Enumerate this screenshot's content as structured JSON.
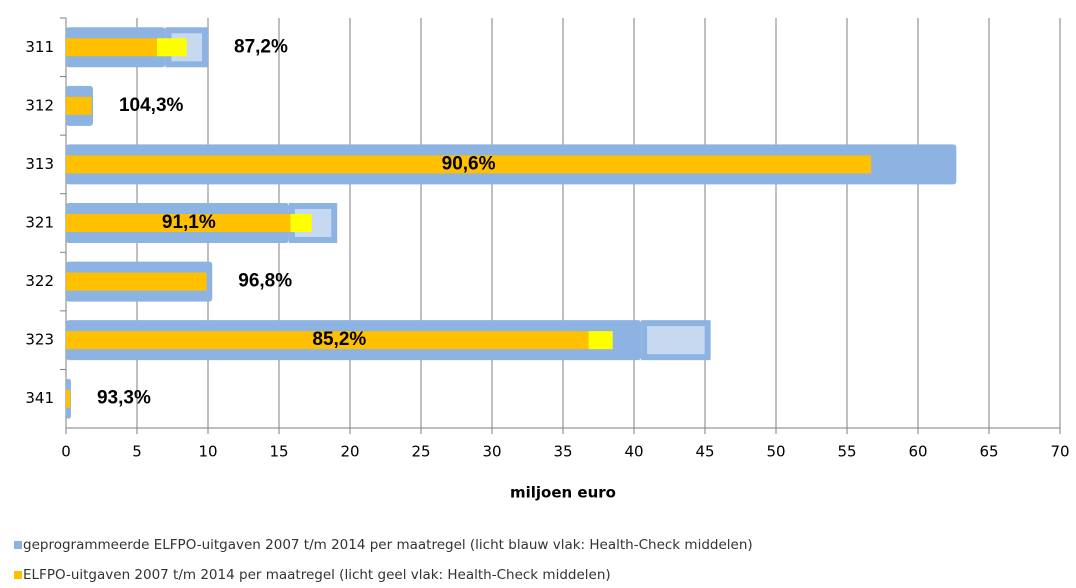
{
  "chart_data": {
    "type": "hbar_overlay",
    "categories": [
      "311",
      "312",
      "313",
      "321",
      "322",
      "323",
      "341"
    ],
    "x_label": "miljoen euro",
    "xlim": [
      0,
      70
    ],
    "xticks": [
      0,
      5,
      10,
      15,
      20,
      25,
      30,
      35,
      40,
      45,
      50,
      55,
      60,
      65,
      70
    ],
    "grid": true,
    "percent_labels": [
      "87,2%",
      "104,3%",
      "90,6%",
      "91,1%",
      "96,8%",
      "85,2%",
      "93,3%"
    ],
    "series": [
      {
        "name": "geprogrammeerde ELFPO-uitgaven 2007 t/m 2014 per maatregel (licht blauw vlak: Health-Check middelen)",
        "color": "#8db3e2",
        "hc_color": "#c6d9f1",
        "values": [
          7.0,
          1.9,
          62.7,
          15.7,
          10.3,
          40.5,
          0.35
        ],
        "hc_values": [
          3.0,
          0,
          0,
          3.4,
          0,
          4.9,
          0
        ]
      },
      {
        "name": "ELFPO-uitgaven 2007 t/m 2014 per maatregel (licht geel vlak: Health-Check middelen)",
        "color": "#ffc000",
        "hc_color": "#ffff00",
        "values": [
          6.4,
          1.8,
          56.7,
          15.8,
          9.9,
          36.8,
          0.3
        ],
        "hc_values": [
          2.1,
          0,
          0,
          1.5,
          0,
          1.7,
          0
        ]
      }
    ]
  }
}
